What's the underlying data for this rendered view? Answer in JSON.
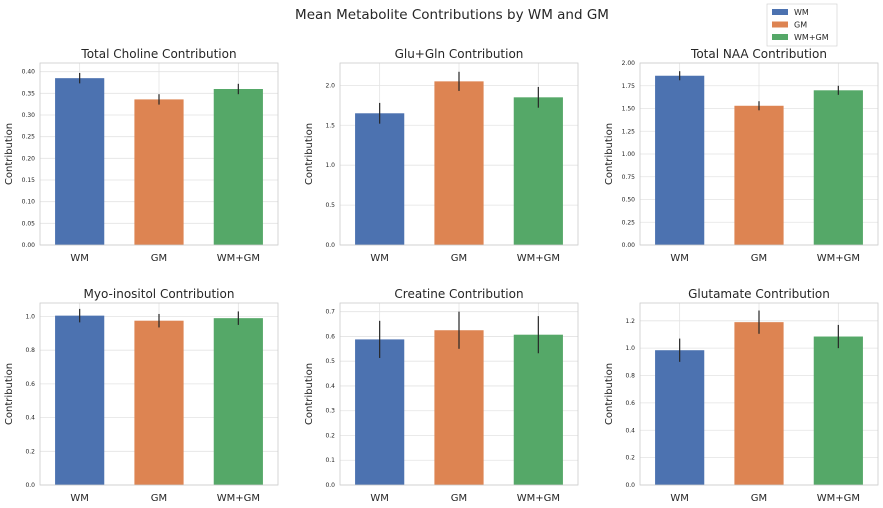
{
  "suptitle": "Mean Metabolite Contributions by WM and GM",
  "legend": {
    "placement": "top-right",
    "entries": [
      {
        "label": "WM",
        "color": "#4c72b0"
      },
      {
        "label": "GM",
        "color": "#dd8452"
      },
      {
        "label": "WM+GM",
        "color": "#55a868"
      }
    ]
  },
  "chart_data": [
    {
      "type": "bar",
      "title": "Total Choline Contribution",
      "ylabel": "Contribution",
      "categories": [
        "WM",
        "GM",
        "WM+GM"
      ],
      "values": [
        0.385,
        0.336,
        0.36
      ],
      "errors": [
        0.012,
        0.012,
        0.012
      ],
      "ylim": [
        0,
        0.42
      ],
      "yticks": [
        "0.00",
        "0.05",
        "0.10",
        "0.15",
        "0.20",
        "0.25",
        "0.30",
        "0.35",
        "0.40"
      ],
      "ytick_values": [
        0,
        0.05,
        0.1,
        0.15,
        0.2,
        0.25,
        0.3,
        0.35,
        0.4
      ],
      "grid": true
    },
    {
      "type": "bar",
      "title": "Glu+Gln Contribution",
      "ylabel": "Contribution",
      "categories": [
        "WM",
        "GM",
        "WM+GM"
      ],
      "values": [
        1.65,
        2.05,
        1.85
      ],
      "errors": [
        0.13,
        0.12,
        0.13
      ],
      "ylim": [
        0,
        2.28
      ],
      "yticks": [
        "0.0",
        "0.5",
        "1.0",
        "1.5",
        "2.0"
      ],
      "ytick_values": [
        0,
        0.5,
        1.0,
        1.5,
        2.0
      ],
      "grid": true
    },
    {
      "type": "bar",
      "title": "Total NAA Contribution",
      "ylabel": "Contribution",
      "categories": [
        "WM",
        "GM",
        "WM+GM"
      ],
      "values": [
        1.86,
        1.53,
        1.7
      ],
      "errors": [
        0.05,
        0.05,
        0.05
      ],
      "ylim": [
        0,
        2.0
      ],
      "yticks": [
        "0.00",
        "0.25",
        "0.50",
        "0.75",
        "1.00",
        "1.25",
        "1.50",
        "1.75",
        "2.00"
      ],
      "ytick_values": [
        0,
        0.25,
        0.5,
        0.75,
        1.0,
        1.25,
        1.5,
        1.75,
        2.0
      ],
      "grid": true
    },
    {
      "type": "bar",
      "title": "Myo-inositol Contribution",
      "ylabel": "Contribution",
      "categories": [
        "WM",
        "GM",
        "WM+GM"
      ],
      "values": [
        1.005,
        0.975,
        0.99
      ],
      "errors": [
        0.04,
        0.04,
        0.04
      ],
      "ylim": [
        0,
        1.08
      ],
      "yticks": [
        "0.0",
        "0.2",
        "0.4",
        "0.6",
        "0.8",
        "1.0"
      ],
      "ytick_values": [
        0,
        0.2,
        0.4,
        0.6,
        0.8,
        1.0
      ],
      "grid": true
    },
    {
      "type": "bar",
      "title": "Creatine Contribution",
      "ylabel": "Contribution",
      "categories": [
        "WM",
        "GM",
        "WM+GM"
      ],
      "values": [
        0.588,
        0.625,
        0.607
      ],
      "errors": [
        0.075,
        0.075,
        0.075
      ],
      "ylim": [
        0,
        0.735
      ],
      "yticks": [
        "0.0",
        "0.1",
        "0.2",
        "0.3",
        "0.4",
        "0.5",
        "0.6",
        "0.7"
      ],
      "ytick_values": [
        0,
        0.1,
        0.2,
        0.3,
        0.4,
        0.5,
        0.6,
        0.7
      ],
      "grid": true
    },
    {
      "type": "bar",
      "title": "Glutamate Contribution",
      "ylabel": "Contribution",
      "categories": [
        "WM",
        "GM",
        "WM+GM"
      ],
      "values": [
        0.985,
        1.19,
        1.085
      ],
      "errors": [
        0.085,
        0.085,
        0.085
      ],
      "ylim": [
        0,
        1.33
      ],
      "yticks": [
        "0.0",
        "0.2",
        "0.4",
        "0.6",
        "0.8",
        "1.0",
        "1.2"
      ],
      "ytick_values": [
        0,
        0.2,
        0.4,
        0.6,
        0.8,
        1.0,
        1.2
      ],
      "grid": true
    }
  ]
}
